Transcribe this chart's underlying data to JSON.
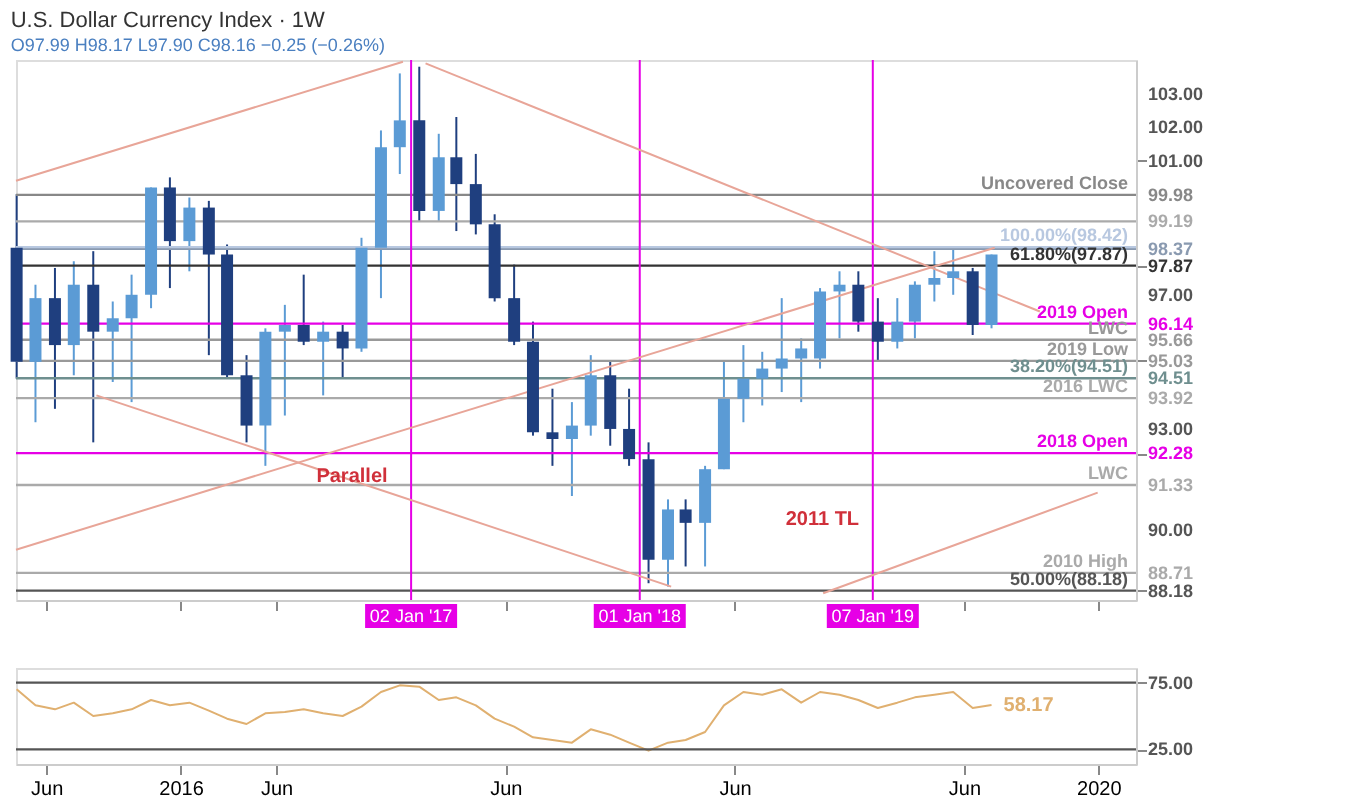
{
  "chart_data": [
    {
      "type": "candlestick",
      "title": "U.S. Dollar Currency Index · 1W",
      "subtitle": "O97.99 H98.17 L97.90 C98.16 −0.25 (−0.26%)",
      "x": [
        "2015-04-15",
        "2015-05-15",
        "2015-06-15",
        "2015-07-15",
        "2015-08-15",
        "2015-09-15",
        "2015-10-15",
        "2015-11-15",
        "2015-12-15",
        "2016-01-15",
        "2016-02-15",
        "2016-03-15",
        "2016-04-15",
        "2016-05-15",
        "2016-06-15",
        "2016-07-15",
        "2016-08-15",
        "2016-09-15",
        "2016-10-15",
        "2016-11-15",
        "2016-12-15",
        "2017-01-15",
        "2017-02-15",
        "2017-03-15",
        "2017-04-15",
        "2017-05-15",
        "2017-06-15",
        "2017-07-15",
        "2017-08-15",
        "2017-09-15",
        "2017-10-15",
        "2017-11-15",
        "2017-12-15",
        "2018-01-15",
        "2018-02-15",
        "2018-03-15",
        "2018-04-15",
        "2018-05-15",
        "2018-06-15",
        "2018-07-15",
        "2018-08-15",
        "2018-09-15",
        "2018-10-15",
        "2018-11-15",
        "2018-12-15",
        "2019-01-15",
        "2019-02-15",
        "2019-03-15",
        "2019-04-15",
        "2019-05-15",
        "2019-06-15",
        "2019-07-15"
      ],
      "ohlc": [
        [
          98.4,
          100.0,
          94.5,
          95.0
        ],
        [
          95.0,
          97.3,
          93.2,
          96.9
        ],
        [
          96.9,
          97.8,
          93.6,
          95.5
        ],
        [
          95.5,
          98.0,
          94.6,
          97.3
        ],
        [
          97.3,
          98.3,
          92.6,
          95.9
        ],
        [
          95.9,
          96.8,
          94.4,
          96.3
        ],
        [
          96.3,
          97.6,
          93.8,
          97.0
        ],
        [
          97.0,
          100.2,
          96.6,
          100.2
        ],
        [
          100.2,
          100.5,
          97.2,
          98.6
        ],
        [
          98.6,
          99.9,
          97.7,
          99.6
        ],
        [
          99.6,
          99.8,
          95.2,
          98.2
        ],
        [
          98.2,
          98.5,
          94.5,
          94.6
        ],
        [
          94.6,
          95.2,
          92.6,
          93.1
        ],
        [
          93.1,
          96.0,
          91.9,
          95.9
        ],
        [
          95.9,
          96.7,
          93.4,
          96.1
        ],
        [
          96.1,
          97.6,
          95.5,
          95.6
        ],
        [
          95.6,
          96.2,
          94.0,
          95.9
        ],
        [
          95.9,
          96.1,
          94.5,
          95.4
        ],
        [
          95.4,
          98.7,
          95.3,
          98.4
        ],
        [
          98.4,
          101.9,
          96.9,
          101.4
        ],
        [
          101.4,
          103.6,
          100.6,
          102.2
        ],
        [
          102.2,
          103.8,
          99.2,
          99.5
        ],
        [
          99.5,
          101.8,
          99.2,
          101.1
        ],
        [
          101.1,
          102.3,
          98.9,
          100.3
        ],
        [
          100.3,
          101.2,
          98.8,
          99.1
        ],
        [
          99.1,
          99.4,
          96.8,
          96.9
        ],
        [
          96.9,
          97.9,
          95.5,
          95.6
        ],
        [
          95.6,
          96.2,
          92.8,
          92.9
        ],
        [
          92.9,
          94.2,
          91.9,
          92.7
        ],
        [
          92.7,
          93.8,
          91.0,
          93.1
        ],
        [
          93.1,
          95.2,
          92.8,
          94.6
        ],
        [
          94.6,
          95.0,
          92.5,
          93.0
        ],
        [
          93.0,
          94.2,
          91.9,
          92.1
        ],
        [
          92.1,
          92.6,
          88.4,
          89.1
        ],
        [
          89.1,
          90.9,
          88.3,
          90.6
        ],
        [
          90.6,
          90.9,
          88.9,
          90.2
        ],
        [
          90.2,
          91.9,
          88.9,
          91.8
        ],
        [
          91.8,
          95.0,
          91.8,
          93.9
        ],
        [
          93.9,
          95.5,
          93.2,
          94.5
        ],
        [
          94.5,
          95.3,
          93.7,
          94.8
        ],
        [
          94.8,
          96.9,
          94.1,
          95.1
        ],
        [
          95.1,
          95.7,
          93.8,
          95.4
        ],
        [
          95.1,
          97.2,
          94.8,
          97.1
        ],
        [
          97.1,
          97.7,
          95.7,
          97.3
        ],
        [
          97.3,
          97.7,
          95.9,
          96.2
        ],
        [
          96.2,
          96.9,
          95.0,
          95.6
        ],
        [
          95.6,
          96.9,
          95.4,
          96.2
        ],
        [
          96.2,
          97.4,
          95.7,
          97.3
        ],
        [
          97.3,
          98.3,
          96.8,
          97.5
        ],
        [
          97.5,
          98.4,
          97.0,
          97.7
        ],
        [
          97.7,
          97.8,
          95.8,
          96.1
        ],
        [
          96.1,
          98.2,
          96.0,
          98.2
        ]
      ],
      "colors": [
        "#1f3f7f",
        "#5b9bd5",
        "#1f3f7f",
        "#5b9bd5",
        "#1f3f7f",
        "#5b9bd5",
        "#5b9bd5",
        "#5b9bd5",
        "#1f3f7f",
        "#5b9bd5",
        "#1f3f7f",
        "#1f3f7f",
        "#1f3f7f",
        "#5b9bd5",
        "#5b9bd5",
        "#1f3f7f",
        "#5b9bd5",
        "#1f3f7f",
        "#5b9bd5",
        "#5b9bd5",
        "#5b9bd5",
        "#1f3f7f",
        "#5b9bd5",
        "#1f3f7f",
        "#1f3f7f",
        "#1f3f7f",
        "#1f3f7f",
        "#1f3f7f",
        "#1f3f7f",
        "#5b9bd5",
        "#5b9bd5",
        "#1f3f7f",
        "#1f3f7f",
        "#1f3f7f",
        "#5b9bd5",
        "#1f3f7f",
        "#5b9bd5",
        "#5b9bd5",
        "#5b9bd5",
        "#5b9bd5",
        "#5b9bd5",
        "#5b9bd5",
        "#5b9bd5",
        "#5b9bd5",
        "#1f3f7f",
        "#1f3f7f",
        "#5b9bd5",
        "#5b9bd5",
        "#5b9bd5",
        "#5b9bd5",
        "#1f3f7f",
        "#5b9bd5"
      ],
      "series": [
        {
          "type": "line",
          "color": "#e8a598",
          "x": [
            "2015-04-14",
            "2016-12-20"
          ],
          "values": [
            100.4,
            103.95
          ]
        },
        {
          "type": "line",
          "color": "#e8a598",
          "x": [
            "2017-01-25",
            "2019-09-30"
          ],
          "values": [
            103.9,
            96.5
          ]
        },
        {
          "type": "line",
          "color": "#e8a598",
          "x": [
            "2015-04-14",
            "2019-07-20"
          ],
          "values": [
            89.4,
            98.4
          ]
        },
        {
          "type": "line",
          "color": "#e8a598",
          "x": [
            "2015-08-20",
            "2018-02-20"
          ],
          "values": [
            94.0,
            88.3
          ]
        },
        {
          "type": "line",
          "color": "#e8a598",
          "x": [
            "2018-10-20",
            "2019-12-31"
          ],
          "values": [
            88.1,
            91.1
          ]
        }
      ],
      "xlim": [
        "2015-04-14",
        "2020-03-01"
      ],
      "ylim": [
        87.9,
        104
      ],
      "xticks": [
        {
          "value": "2015-06-01",
          "label": null
        },
        {
          "value": "2016-01-01",
          "label": null
        },
        {
          "value": "2016-06-01",
          "label": null
        },
        {
          "value": "2017-06-01",
          "label": null
        },
        {
          "value": "2018-06-01",
          "label": null
        },
        {
          "value": "2019-06-01",
          "label": null
        },
        {
          "value": "2020-01-01",
          "label": null
        }
      ],
      "yticks": [
        {
          "value": 90,
          "label": "90.00"
        },
        {
          "value": 93,
          "label": "93.00"
        },
        {
          "value": 97,
          "label": "97.00"
        },
        {
          "value": 101,
          "label": "101.00"
        },
        {
          "value": 102,
          "label": "102.00"
        },
        {
          "value": 103,
          "label": "103.00"
        },
        {
          "value": 99.98,
          "label": "99.98"
        },
        {
          "value": 99.19,
          "label": "99.19"
        },
        {
          "value": 98.37,
          "label": "98.37"
        },
        {
          "value": 97.87,
          "label": "97.87"
        },
        {
          "value": 96.14,
          "label": "96.14"
        },
        {
          "value": 95.66,
          "label": "95.66"
        },
        {
          "value": 95.03,
          "label": "95.03"
        },
        {
          "value": 94.51,
          "label": "94.51"
        },
        {
          "value": 93.92,
          "label": "93.92"
        },
        {
          "value": 92.28,
          "label": "92.28"
        },
        {
          "value": 91.33,
          "label": "91.33"
        },
        {
          "value": 88.71,
          "label": "88.71"
        },
        {
          "value": 88.18,
          "label": "88.18"
        }
      ],
      "tick_labels": "y",
      "ref_lines": [
        {
          "axis": "y",
          "value": 99.98,
          "label": "Uncovered Close",
          "color": "#888888"
        },
        {
          "axis": "y",
          "value": 99.19,
          "color": "#aaaaaa"
        },
        {
          "axis": "y",
          "value": 98.37,
          "color": "#8a9ab0"
        },
        {
          "axis": "y",
          "value": 98.42,
          "label": "100.00%(98.42)",
          "color": "#b8c8e0"
        },
        {
          "axis": "y",
          "value": 97.87,
          "label": "61.80%(97.87)",
          "color": "#333333"
        },
        {
          "axis": "y",
          "value": 96.14,
          "label": "2019 Open",
          "color": "#e600e6"
        },
        {
          "axis": "y",
          "value": 95.66,
          "label": "LWC",
          "color": "#999999"
        },
        {
          "axis": "y",
          "value": 95.03,
          "label": "2019 Low",
          "color": "#999999"
        },
        {
          "axis": "y",
          "value": 94.51,
          "label": "38.20%(94.51)",
          "color": "#6f8f8f"
        },
        {
          "axis": "y",
          "value": 93.92,
          "label": "2016 LWC",
          "color": "#aaaaaa"
        },
        {
          "axis": "y",
          "value": 92.28,
          "label": "2018 Open",
          "color": "#e600e6"
        },
        {
          "axis": "y",
          "value": 91.33,
          "label": "LWC",
          "color": "#aaaaaa"
        },
        {
          "axis": "y",
          "value": 88.71,
          "label": "2010 High",
          "color": "#aaaaaa"
        },
        {
          "axis": "y",
          "value": 88.18,
          "label": "50.00%(88.18)",
          "color": "#555555"
        },
        {
          "axis": "x",
          "value": "2017-01-02",
          "label": "02 Jan '17",
          "color": "#e600e6"
        },
        {
          "axis": "x",
          "value": "2018-01-01",
          "label": "01 Jan '18",
          "color": "#e600e6"
        },
        {
          "axis": "x",
          "value": "2019-01-07",
          "label": "07 Jan '19",
          "color": "#e600e6"
        }
      ],
      "annotations": [
        "Parallel",
        "2011 TL"
      ]
    },
    {
      "type": "line",
      "x": [
        "2015-04-15",
        "2015-05-15",
        "2015-06-15",
        "2015-07-15",
        "2015-08-15",
        "2015-09-15",
        "2015-10-15",
        "2015-11-15",
        "2015-12-15",
        "2016-01-15",
        "2016-02-15",
        "2016-03-15",
        "2016-04-15",
        "2016-05-15",
        "2016-06-15",
        "2016-07-15",
        "2016-08-15",
        "2016-09-15",
        "2016-10-15",
        "2016-11-15",
        "2016-12-15",
        "2017-01-15",
        "2017-02-15",
        "2017-03-15",
        "2017-04-15",
        "2017-05-15",
        "2017-06-15",
        "2017-07-15",
        "2017-08-15",
        "2017-09-15",
        "2017-10-15",
        "2017-11-15",
        "2017-12-15",
        "2018-01-15",
        "2018-02-15",
        "2018-03-15",
        "2018-04-15",
        "2018-05-15",
        "2018-06-15",
        "2018-07-15",
        "2018-08-15",
        "2018-09-15",
        "2018-10-15",
        "2018-11-15",
        "2018-12-15",
        "2019-01-15",
        "2019-02-15",
        "2019-03-15",
        "2019-04-15",
        "2019-05-15",
        "2019-06-15",
        "2019-07-15"
      ],
      "series": [
        {
          "color": "#e0b070",
          "values": [
            70,
            58,
            55,
            60,
            50,
            52,
            55,
            62,
            58,
            60,
            54,
            48,
            44,
            52,
            53,
            55,
            52,
            50,
            57,
            68,
            73,
            72,
            62,
            64,
            58,
            48,
            42,
            34,
            32,
            30,
            40,
            36,
            30,
            24,
            30,
            32,
            38,
            58,
            68,
            66,
            70,
            60,
            68,
            66,
            62,
            56,
            60,
            64,
            66,
            68,
            56,
            58.17
          ],
          "value_labels": [
            null,
            null,
            null,
            null,
            null,
            null,
            null,
            null,
            null,
            null,
            null,
            null,
            null,
            null,
            null,
            null,
            null,
            null,
            null,
            null,
            null,
            null,
            null,
            null,
            null,
            null,
            null,
            null,
            null,
            null,
            null,
            null,
            null,
            null,
            null,
            null,
            null,
            null,
            null,
            null,
            null,
            null,
            null,
            null,
            null,
            null,
            null,
            null,
            null,
            null,
            null,
            "58.17"
          ]
        }
      ],
      "xlim": [
        "2015-04-14",
        "2020-03-01"
      ],
      "ylim": [
        14,
        86
      ],
      "xticks": [
        {
          "value": "2015-06-01",
          "label": "Jun"
        },
        {
          "value": "2016-01-01",
          "label": "2016"
        },
        {
          "value": "2016-06-01",
          "label": "Jun"
        },
        {
          "value": "2017-06-01",
          "label": "Jun"
        },
        {
          "value": "2018-06-01",
          "label": "Jun"
        },
        {
          "value": "2019-06-01",
          "label": "Jun"
        },
        {
          "value": "2020-01-01",
          "label": "2020"
        }
      ],
      "yticks": [
        {
          "value": 25,
          "label": "25.00"
        },
        {
          "value": 75,
          "label": "75.00"
        }
      ],
      "ref_lines": [
        {
          "axis": "y",
          "value": 75,
          "color": "#555555"
        },
        {
          "axis": "y",
          "value": 25,
          "color": "#555555"
        }
      ]
    }
  ]
}
